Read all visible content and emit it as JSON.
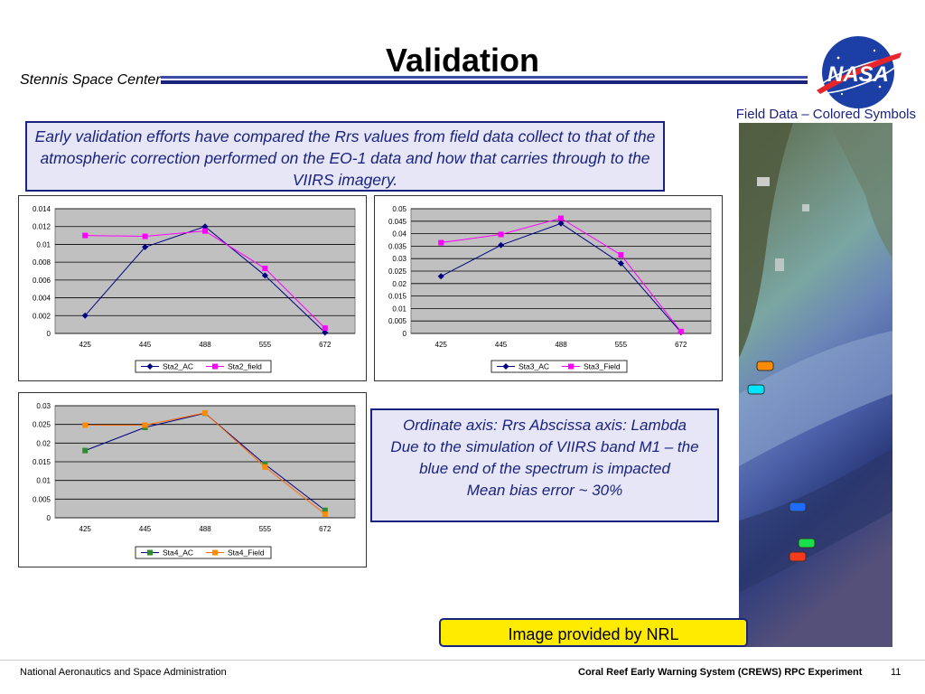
{
  "slide": {
    "title": "Validation",
    "center_name": "Stennis Space Center",
    "logo_text": "NASA",
    "field_caption": "Field Data – Colored Symbols",
    "intro_text": "Early validation efforts have compared the Rrs values from field data collect to that of the atmospheric correction performed on the EO-1 data and how that carries through to the VIIRS imagery.",
    "notes": [
      "Ordinate axis: Rrs  Abscissa axis: Lambda",
      "Due to the simulation of VIIRS band M1 – the blue end of the spectrum is impacted",
      "Mean bias error ~ 30%"
    ],
    "image_credit": "Image provided by NRL",
    "footer_left": "National Aeronautics and Space Administration",
    "footer_right": "Coral Reef Early Warning System (CREWS) RPC Experiment",
    "page_number": "11"
  },
  "colors": {
    "accent_blue": "#1a237e",
    "rule_blue": "#3a4da6",
    "plot_bg": "#c0c0c0",
    "credit_bg": "#ffeb00"
  },
  "markers": [
    "orange",
    "cyan",
    "blue",
    "green",
    "red"
  ],
  "chart_data": [
    {
      "type": "line",
      "categories": [
        "425",
        "445",
        "488",
        "555",
        "672"
      ],
      "ylim": [
        0,
        0.014
      ],
      "yticks": [
        "0",
        "0.002",
        "0.004",
        "0.006",
        "0.008",
        "0.01",
        "0.012",
        "0.014"
      ],
      "grid": true,
      "legend": "bottom",
      "series": [
        {
          "name": "Sta2_AC",
          "color": "#000080",
          "marker": "diamond",
          "values": [
            0.002,
            0.0097,
            0.012,
            0.0065,
            0.0001
          ]
        },
        {
          "name": "Sta2_field",
          "color": "#ff00ff",
          "marker": "square",
          "values": [
            0.011,
            0.0109,
            0.0115,
            0.0073,
            0.0006
          ]
        }
      ]
    },
    {
      "type": "line",
      "categories": [
        "425",
        "445",
        "488",
        "555",
        "672"
      ],
      "ylim": [
        0,
        0.05
      ],
      "yticks": [
        "0",
        "0.005",
        "0.01",
        "0.015",
        "0.02",
        "0.025",
        "0.03",
        "0.035",
        "0.04",
        "0.045",
        "0.05"
      ],
      "grid": true,
      "legend": "bottom",
      "series": [
        {
          "name": "Sta3_AC",
          "color": "#000080",
          "marker": "diamond",
          "values": [
            0.0229,
            0.0354,
            0.0441,
            0.0281,
            0.0005
          ]
        },
        {
          "name": "Sta3_Field",
          "color": "#ff00ff",
          "marker": "square",
          "values": [
            0.0364,
            0.0397,
            0.0462,
            0.0315,
            0.0008
          ]
        }
      ]
    },
    {
      "type": "line",
      "categories": [
        "425",
        "445",
        "488",
        "555",
        "672"
      ],
      "ylim": [
        0,
        0.03
      ],
      "yticks": [
        "0",
        "0.005",
        "0.01",
        "0.015",
        "0.02",
        "0.025",
        "0.03"
      ],
      "grid": true,
      "legend": "bottom",
      "series": [
        {
          "name": "Sta4_AC",
          "color": "#000080",
          "marker": "square-green",
          "values": [
            0.018,
            0.0242,
            0.028,
            0.0143,
            0.002
          ]
        },
        {
          "name": "Sta4_Field",
          "color": "#ff6600",
          "marker": "square-orange",
          "values": [
            0.0248,
            0.0248,
            0.0281,
            0.0136,
            0.001
          ]
        }
      ]
    }
  ]
}
